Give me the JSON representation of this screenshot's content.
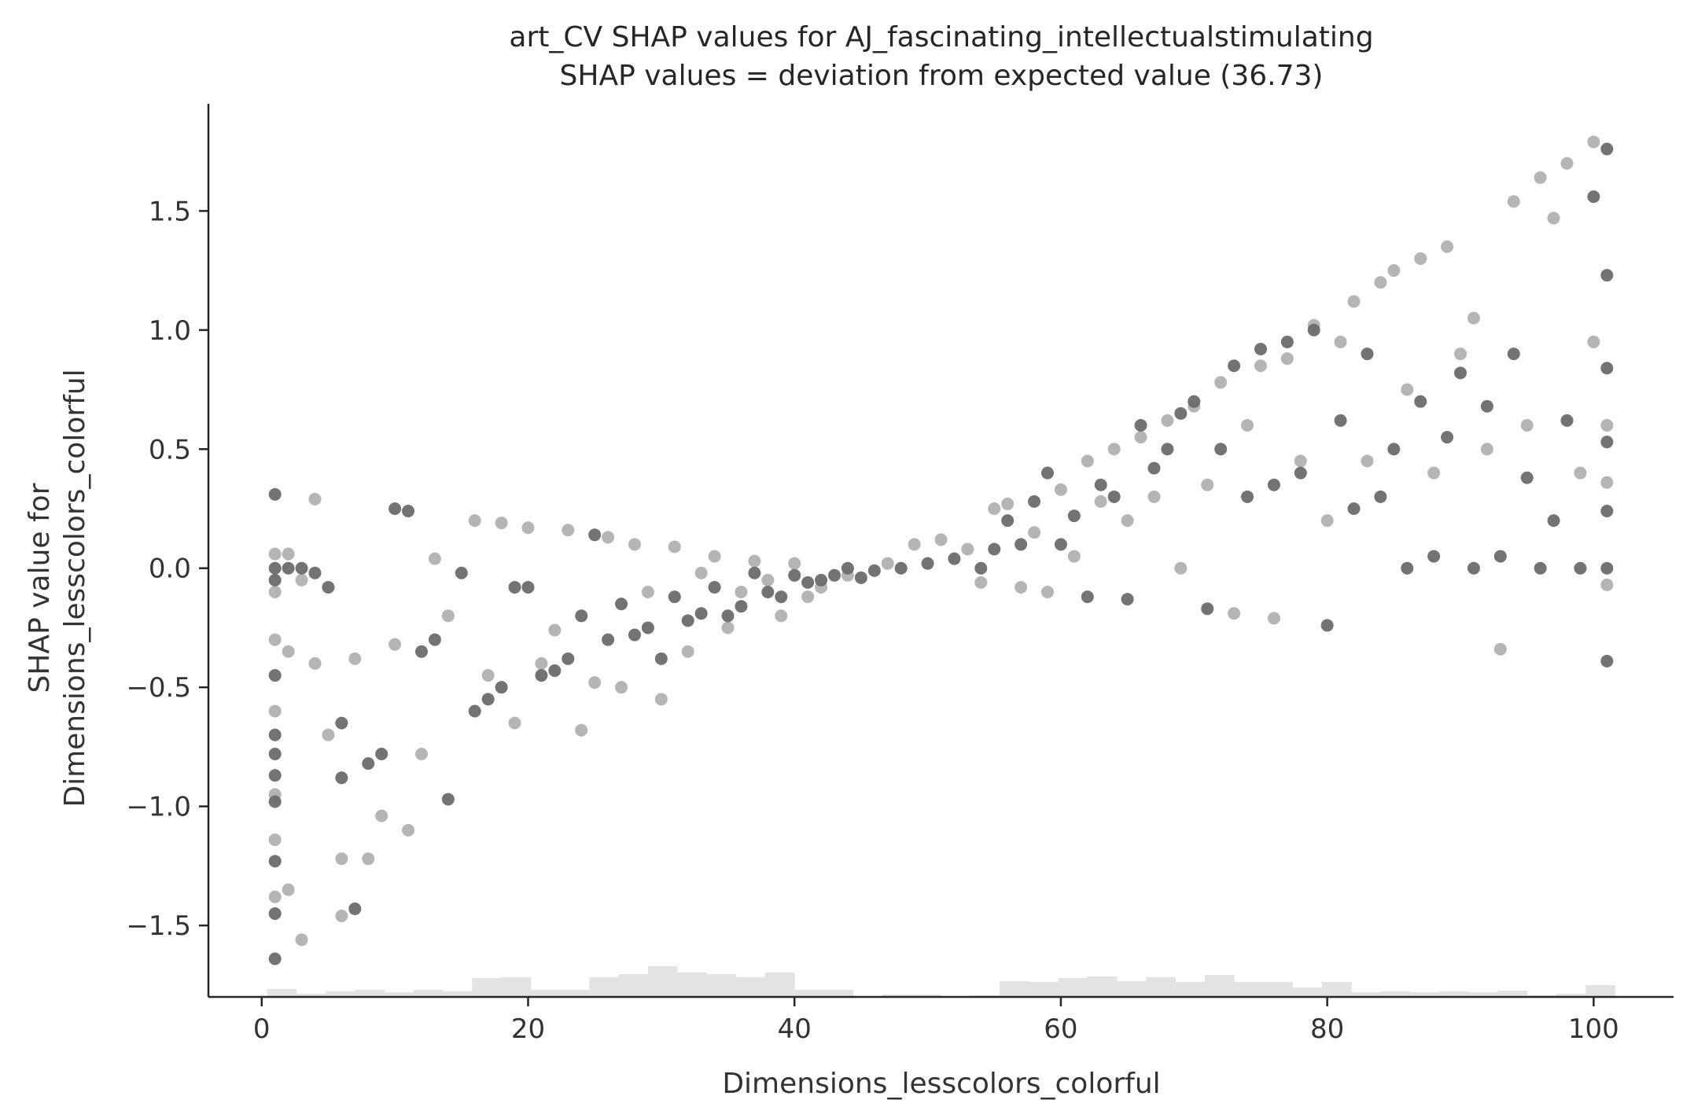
{
  "chart_data": {
    "type": "scatter",
    "title": "art_CV SHAP values for AJ_fascinating_intellectualstimulating",
    "subtitle": "SHAP values = deviation from expected value (36.73)",
    "xlabel": "Dimensions_lesscolors_colorful",
    "ylabel_line1": "SHAP value for",
    "ylabel_line2": "Dimensions_lesscolors_colorful",
    "xlim": [
      -4,
      106
    ],
    "ylim": [
      -1.8,
      1.95
    ],
    "x_ticks": [
      0,
      20,
      40,
      60,
      80,
      100
    ],
    "x_tick_labels": [
      "0",
      "20",
      "40",
      "60",
      "80",
      "100"
    ],
    "y_ticks": [
      -1.5,
      -1.0,
      -0.5,
      0.0,
      0.5,
      1.0,
      1.5
    ],
    "y_tick_labels": [
      "−1.5",
      "−1.0",
      "−0.5",
      "0.0",
      "0.5",
      "1.0",
      "1.5"
    ],
    "grid": false,
    "colors": {
      "dark_point": "#6b6b6b",
      "light_point": "#a8a8a8",
      "histogram": "#e3e3e3",
      "axis": "#262626"
    },
    "histogram": {
      "bin_edges_start": 0.4,
      "bin_width": 2.2,
      "relative_heights": [
        0.5,
        0.2,
        0.35,
        0.45,
        0.3,
        0.45,
        0.35,
        1.2,
        1.25,
        0.45,
        0.45,
        1.25,
        1.45,
        1.95,
        1.55,
        1.45,
        1.25,
        1.55,
        0.45,
        0.45,
        0.05,
        0.15,
        0.15,
        0.05,
        0.1,
        1.0,
        0.95,
        1.2,
        1.3,
        1.0,
        1.25,
        0.95,
        1.4,
        0.95,
        0.95,
        0.6,
        0.95,
        0.3,
        0.35,
        0.3,
        0.35,
        0.3,
        0.4,
        0.1,
        0.2,
        0.75
      ]
    },
    "series": [
      {
        "style": "dark",
        "points": [
          [
            1,
            0.0
          ],
          [
            1,
            -0.05
          ],
          [
            1,
            -0.45
          ],
          [
            1,
            -0.7
          ],
          [
            1,
            -0.78
          ],
          [
            1,
            -0.87
          ],
          [
            1,
            -0.98
          ],
          [
            1,
            -1.23
          ],
          [
            1,
            -1.45
          ],
          [
            1,
            -1.64
          ],
          [
            1,
            0.31
          ],
          [
            2,
            0.0
          ],
          [
            3,
            0.0
          ],
          [
            4,
            -0.02
          ],
          [
            5,
            -0.08
          ],
          [
            6,
            -0.65
          ],
          [
            6,
            -0.88
          ],
          [
            7,
            -1.43
          ],
          [
            8,
            -0.82
          ],
          [
            9,
            -0.78
          ],
          [
            10,
            0.25
          ],
          [
            11,
            0.24
          ],
          [
            12,
            -0.35
          ],
          [
            13,
            -0.3
          ],
          [
            14,
            -0.97
          ],
          [
            15,
            -0.02
          ],
          [
            16,
            -0.6
          ],
          [
            17,
            -0.55
          ],
          [
            18,
            -0.5
          ],
          [
            19,
            -0.08
          ],
          [
            20,
            -0.08
          ],
          [
            21,
            -0.45
          ],
          [
            22,
            -0.43
          ],
          [
            23,
            -0.38
          ],
          [
            24,
            -0.2
          ],
          [
            25,
            0.14
          ],
          [
            26,
            -0.3
          ],
          [
            27,
            -0.15
          ],
          [
            28,
            -0.28
          ],
          [
            29,
            -0.25
          ],
          [
            30,
            -0.38
          ],
          [
            31,
            -0.12
          ],
          [
            32,
            -0.22
          ],
          [
            33,
            -0.19
          ],
          [
            34,
            -0.08
          ],
          [
            35,
            -0.2
          ],
          [
            36,
            -0.16
          ],
          [
            37,
            -0.02
          ],
          [
            38,
            -0.1
          ],
          [
            39,
            -0.12
          ],
          [
            40,
            -0.03
          ],
          [
            41,
            -0.06
          ],
          [
            42,
            -0.05
          ],
          [
            43,
            -0.03
          ],
          [
            44,
            0.0
          ],
          [
            45,
            -0.04
          ],
          [
            46,
            -0.01
          ],
          [
            48,
            0.0
          ],
          [
            50,
            0.02
          ],
          [
            52,
            0.04
          ],
          [
            54,
            0.0
          ],
          [
            55,
            0.08
          ],
          [
            56,
            0.2
          ],
          [
            57,
            0.1
          ],
          [
            58,
            0.28
          ],
          [
            59,
            0.4
          ],
          [
            60,
            0.1
          ],
          [
            61,
            0.22
          ],
          [
            62,
            -0.12
          ],
          [
            63,
            0.35
          ],
          [
            64,
            0.3
          ],
          [
            65,
            -0.13
          ],
          [
            66,
            0.6
          ],
          [
            67,
            0.42
          ],
          [
            68,
            0.5
          ],
          [
            69,
            0.65
          ],
          [
            70,
            0.7
          ],
          [
            71,
            -0.17
          ],
          [
            72,
            0.5
          ],
          [
            73,
            0.85
          ],
          [
            74,
            0.3
          ],
          [
            75,
            0.92
          ],
          [
            76,
            0.35
          ],
          [
            77,
            0.95
          ],
          [
            78,
            0.4
          ],
          [
            79,
            1.0
          ],
          [
            80,
            -0.24
          ],
          [
            81,
            0.62
          ],
          [
            82,
            0.25
          ],
          [
            83,
            0.9
          ],
          [
            84,
            0.3
          ],
          [
            85,
            0.5
          ],
          [
            86,
            0.0
          ],
          [
            87,
            0.7
          ],
          [
            88,
            0.05
          ],
          [
            89,
            0.55
          ],
          [
            90,
            0.82
          ],
          [
            91,
            0.0
          ],
          [
            92,
            0.68
          ],
          [
            93,
            0.05
          ],
          [
            94,
            0.9
          ],
          [
            95,
            0.38
          ],
          [
            96,
            0.0
          ],
          [
            97,
            0.2
          ],
          [
            98,
            0.62
          ],
          [
            99,
            0.0
          ],
          [
            100,
            1.56
          ],
          [
            101,
            1.76
          ],
          [
            101,
            1.23
          ],
          [
            101,
            0.84
          ],
          [
            101,
            0.53
          ],
          [
            101,
            0.24
          ],
          [
            101,
            0.0
          ],
          [
            101,
            -0.39
          ]
        ]
      },
      {
        "style": "light",
        "points": [
          [
            1,
            0.06
          ],
          [
            1,
            -0.1
          ],
          [
            1,
            -0.3
          ],
          [
            1,
            -0.6
          ],
          [
            1,
            -0.95
          ],
          [
            1,
            -1.14
          ],
          [
            1,
            -1.38
          ],
          [
            2,
            0.06
          ],
          [
            2,
            -0.35
          ],
          [
            2,
            -1.35
          ],
          [
            3,
            -0.05
          ],
          [
            3,
            -1.56
          ],
          [
            4,
            0.29
          ],
          [
            4,
            -0.4
          ],
          [
            5,
            -0.7
          ],
          [
            6,
            -1.46
          ],
          [
            6,
            -1.22
          ],
          [
            7,
            -0.38
          ],
          [
            8,
            -1.22
          ],
          [
            9,
            -1.04
          ],
          [
            10,
            -0.32
          ],
          [
            11,
            -1.1
          ],
          [
            12,
            -0.78
          ],
          [
            13,
            0.04
          ],
          [
            14,
            -0.2
          ],
          [
            16,
            0.2
          ],
          [
            17,
            -0.45
          ],
          [
            18,
            0.19
          ],
          [
            19,
            -0.65
          ],
          [
            20,
            0.17
          ],
          [
            21,
            -0.4
          ],
          [
            22,
            -0.26
          ],
          [
            23,
            0.16
          ],
          [
            24,
            -0.68
          ],
          [
            25,
            -0.48
          ],
          [
            26,
            0.13
          ],
          [
            27,
            -0.5
          ],
          [
            28,
            0.1
          ],
          [
            29,
            -0.1
          ],
          [
            30,
            -0.55
          ],
          [
            31,
            0.09
          ],
          [
            32,
            -0.35
          ],
          [
            33,
            -0.02
          ],
          [
            34,
            0.05
          ],
          [
            35,
            -0.25
          ],
          [
            36,
            -0.1
          ],
          [
            37,
            0.03
          ],
          [
            38,
            -0.05
          ],
          [
            39,
            -0.2
          ],
          [
            40,
            0.02
          ],
          [
            41,
            -0.12
          ],
          [
            42,
            -0.08
          ],
          [
            44,
            -0.03
          ],
          [
            47,
            0.02
          ],
          [
            49,
            0.1
          ],
          [
            51,
            0.12
          ],
          [
            53,
            0.08
          ],
          [
            54,
            -0.06
          ],
          [
            55,
            0.25
          ],
          [
            56,
            0.27
          ],
          [
            57,
            -0.08
          ],
          [
            58,
            0.15
          ],
          [
            59,
            -0.1
          ],
          [
            60,
            0.33
          ],
          [
            61,
            0.05
          ],
          [
            62,
            0.45
          ],
          [
            63,
            0.28
          ],
          [
            64,
            0.5
          ],
          [
            65,
            0.2
          ],
          [
            66,
            0.55
          ],
          [
            67,
            0.3
          ],
          [
            68,
            0.62
          ],
          [
            69,
            0.0
          ],
          [
            70,
            0.68
          ],
          [
            71,
            0.35
          ],
          [
            72,
            0.78
          ],
          [
            73,
            -0.19
          ],
          [
            74,
            0.6
          ],
          [
            75,
            0.85
          ],
          [
            76,
            -0.21
          ],
          [
            77,
            0.88
          ],
          [
            78,
            0.45
          ],
          [
            79,
            1.02
          ],
          [
            80,
            0.2
          ],
          [
            81,
            0.95
          ],
          [
            82,
            1.12
          ],
          [
            83,
            0.45
          ],
          [
            84,
            1.2
          ],
          [
            85,
            1.25
          ],
          [
            86,
            0.75
          ],
          [
            87,
            1.3
          ],
          [
            88,
            0.4
          ],
          [
            89,
            1.35
          ],
          [
            90,
            0.9
          ],
          [
            91,
            1.05
          ],
          [
            92,
            0.5
          ],
          [
            93,
            -0.34
          ],
          [
            94,
            1.54
          ],
          [
            95,
            0.6
          ],
          [
            96,
            1.64
          ],
          [
            97,
            1.47
          ],
          [
            98,
            1.7
          ],
          [
            99,
            0.4
          ],
          [
            100,
            1.79
          ],
          [
            100,
            0.95
          ],
          [
            101,
            0.6
          ],
          [
            101,
            0.36
          ],
          [
            101,
            -0.07
          ]
        ]
      }
    ]
  }
}
